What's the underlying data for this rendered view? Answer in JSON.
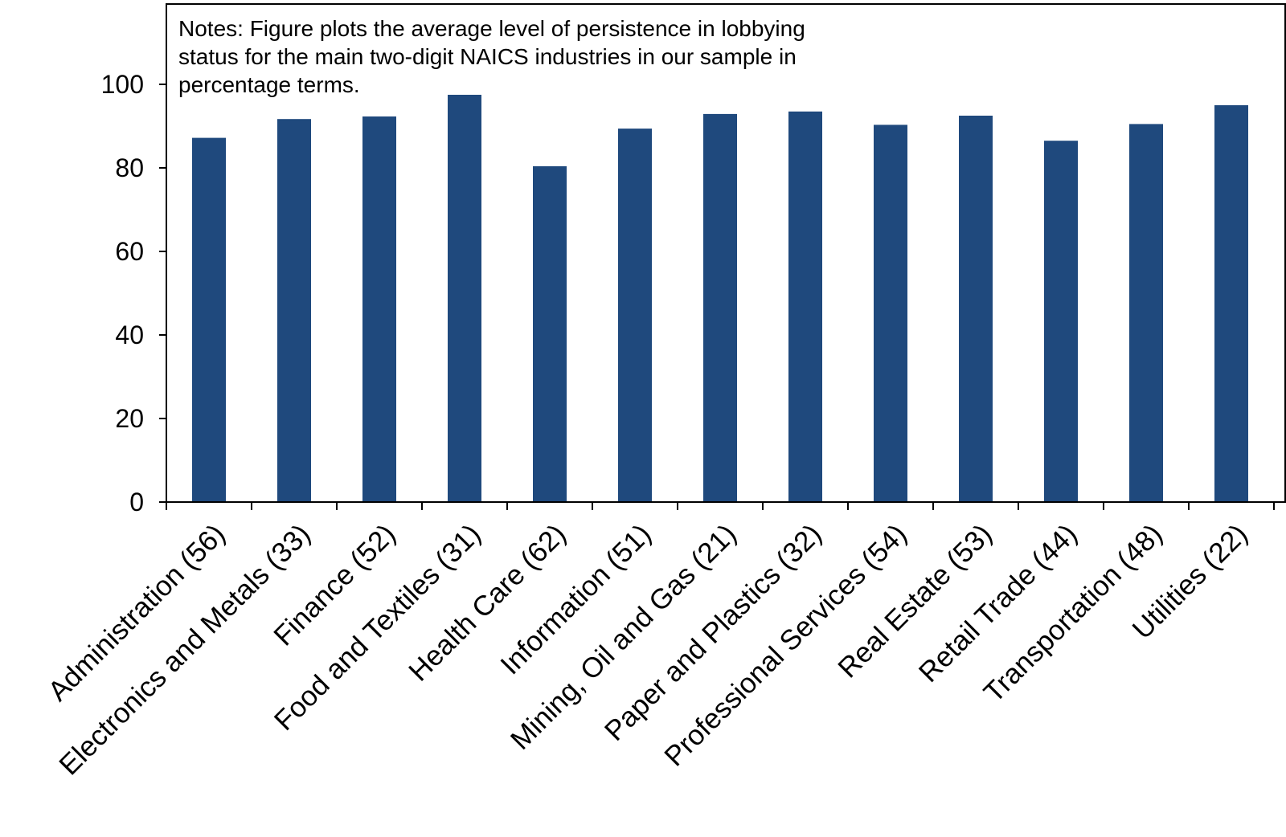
{
  "chart_data": {
    "type": "bar",
    "title": "",
    "xlabel": "",
    "ylabel": "",
    "notes": [
      "Notes: Figure plots the average level of persistence in lobbying",
      "status for the main two-digit NAICS industries in our sample in",
      "percentage terms."
    ],
    "categories": [
      "Administration (56)",
      "Electronics and Metals (33)",
      "Finance (52)",
      "Food and Textiles (31)",
      "Health Care (62)",
      "Information (51)",
      "Mining, Oil and Gas (21)",
      "Paper and Plastics (32)",
      "Professional Services (54)",
      "Real Estate (53)",
      "Retail Trade (44)",
      "Transportation (48)",
      "Utilities (22)"
    ],
    "values": [
      87.2,
      91.7,
      92.3,
      97.5,
      80.4,
      89.4,
      92.9,
      93.5,
      90.3,
      92.5,
      86.5,
      90.5,
      95.0
    ],
    "ylim": [
      0,
      100
    ],
    "yticks": [
      0,
      20,
      40,
      60,
      80,
      100
    ],
    "grid": false,
    "legend": "none",
    "colors": {
      "bar": "#1f497d",
      "axis": "#000000"
    }
  }
}
